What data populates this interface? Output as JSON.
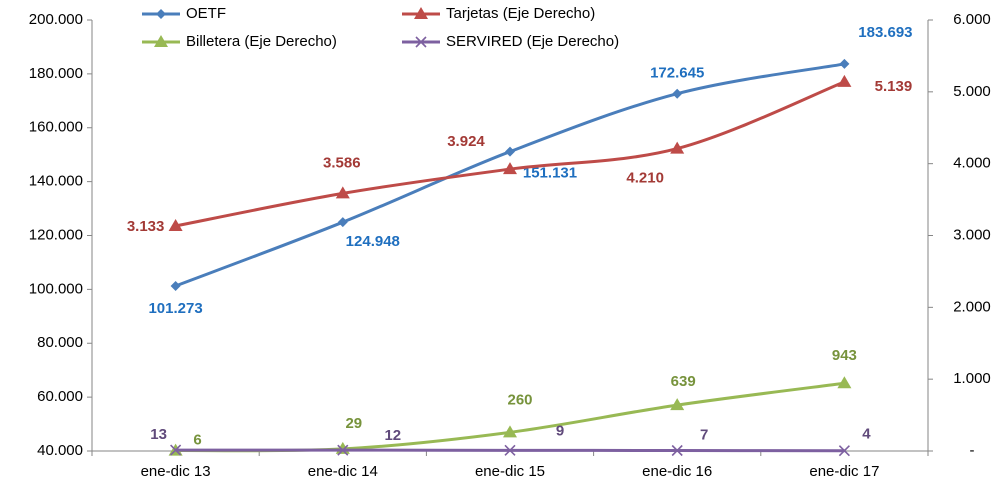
{
  "chart_data": {
    "type": "line",
    "categories": [
      "ene-dic 13",
      "ene-dic 14",
      "ene-dic 15",
      "ene-dic 16",
      "ene-dic 17"
    ],
    "series": [
      {
        "name": "OETF",
        "color": "#4a7ebb",
        "label_color": "#1f6fbf",
        "marker": "diamond",
        "values": [
          101273,
          124948,
          151131,
          172645,
          183693
        ],
        "value_labels": [
          "101.273",
          "124.948",
          "151.131",
          "172.645",
          "183.693"
        ]
      },
      {
        "name": "Tarjetas (Eje Derecho)",
        "color": "#be4b48",
        "label_color": "#a33a36",
        "marker": "triangle",
        "axis": "y2",
        "values": [
          3133,
          3586,
          3924,
          4210,
          5139
        ],
        "value_labels": [
          "3.133",
          "3.586",
          "3.924",
          "4.210",
          "5.139"
        ]
      },
      {
        "name": "Billetera (Eje Derecho)",
        "color": "#98b954",
        "label_color": "#77933c",
        "marker": "triangle",
        "axis": "y2",
        "values": [
          6,
          29,
          260,
          639,
          943
        ]
      },
      {
        "name": "SERVIRED (Eje Derecho)",
        "color": "#7d60a0",
        "label_color": "#604a7b",
        "marker": "x",
        "axis": "y2",
        "values": [
          13,
          12,
          9,
          7,
          4
        ]
      }
    ],
    "ylim": [
      40000,
      200000
    ],
    "yticks": [
      {
        "value": 40000,
        "label": "40.000"
      },
      {
        "value": 60000,
        "label": "60.000"
      },
      {
        "value": 80000,
        "label": "80.000"
      },
      {
        "value": 100000,
        "label": "100.000"
      },
      {
        "value": 120000,
        "label": "120.000"
      },
      {
        "value": 140000,
        "label": "140.000"
      },
      {
        "value": 160000,
        "label": "160.000"
      },
      {
        "value": 180000,
        "label": "180.000"
      },
      {
        "value": 200000,
        "label": "200.000"
      }
    ],
    "y2lim": [
      0,
      6000
    ],
    "y2ticks": [
      {
        "value": 0,
        "label": "-"
      },
      {
        "value": 1000,
        "label": "1.000"
      },
      {
        "value": 2000,
        "label": "2.000"
      },
      {
        "value": 3000,
        "label": "3.000"
      },
      {
        "value": 4000,
        "label": "4.000"
      },
      {
        "value": 5000,
        "label": "5.000"
      },
      {
        "value": 6000,
        "label": "6.000"
      }
    ],
    "legend": "top",
    "grid": false
  }
}
